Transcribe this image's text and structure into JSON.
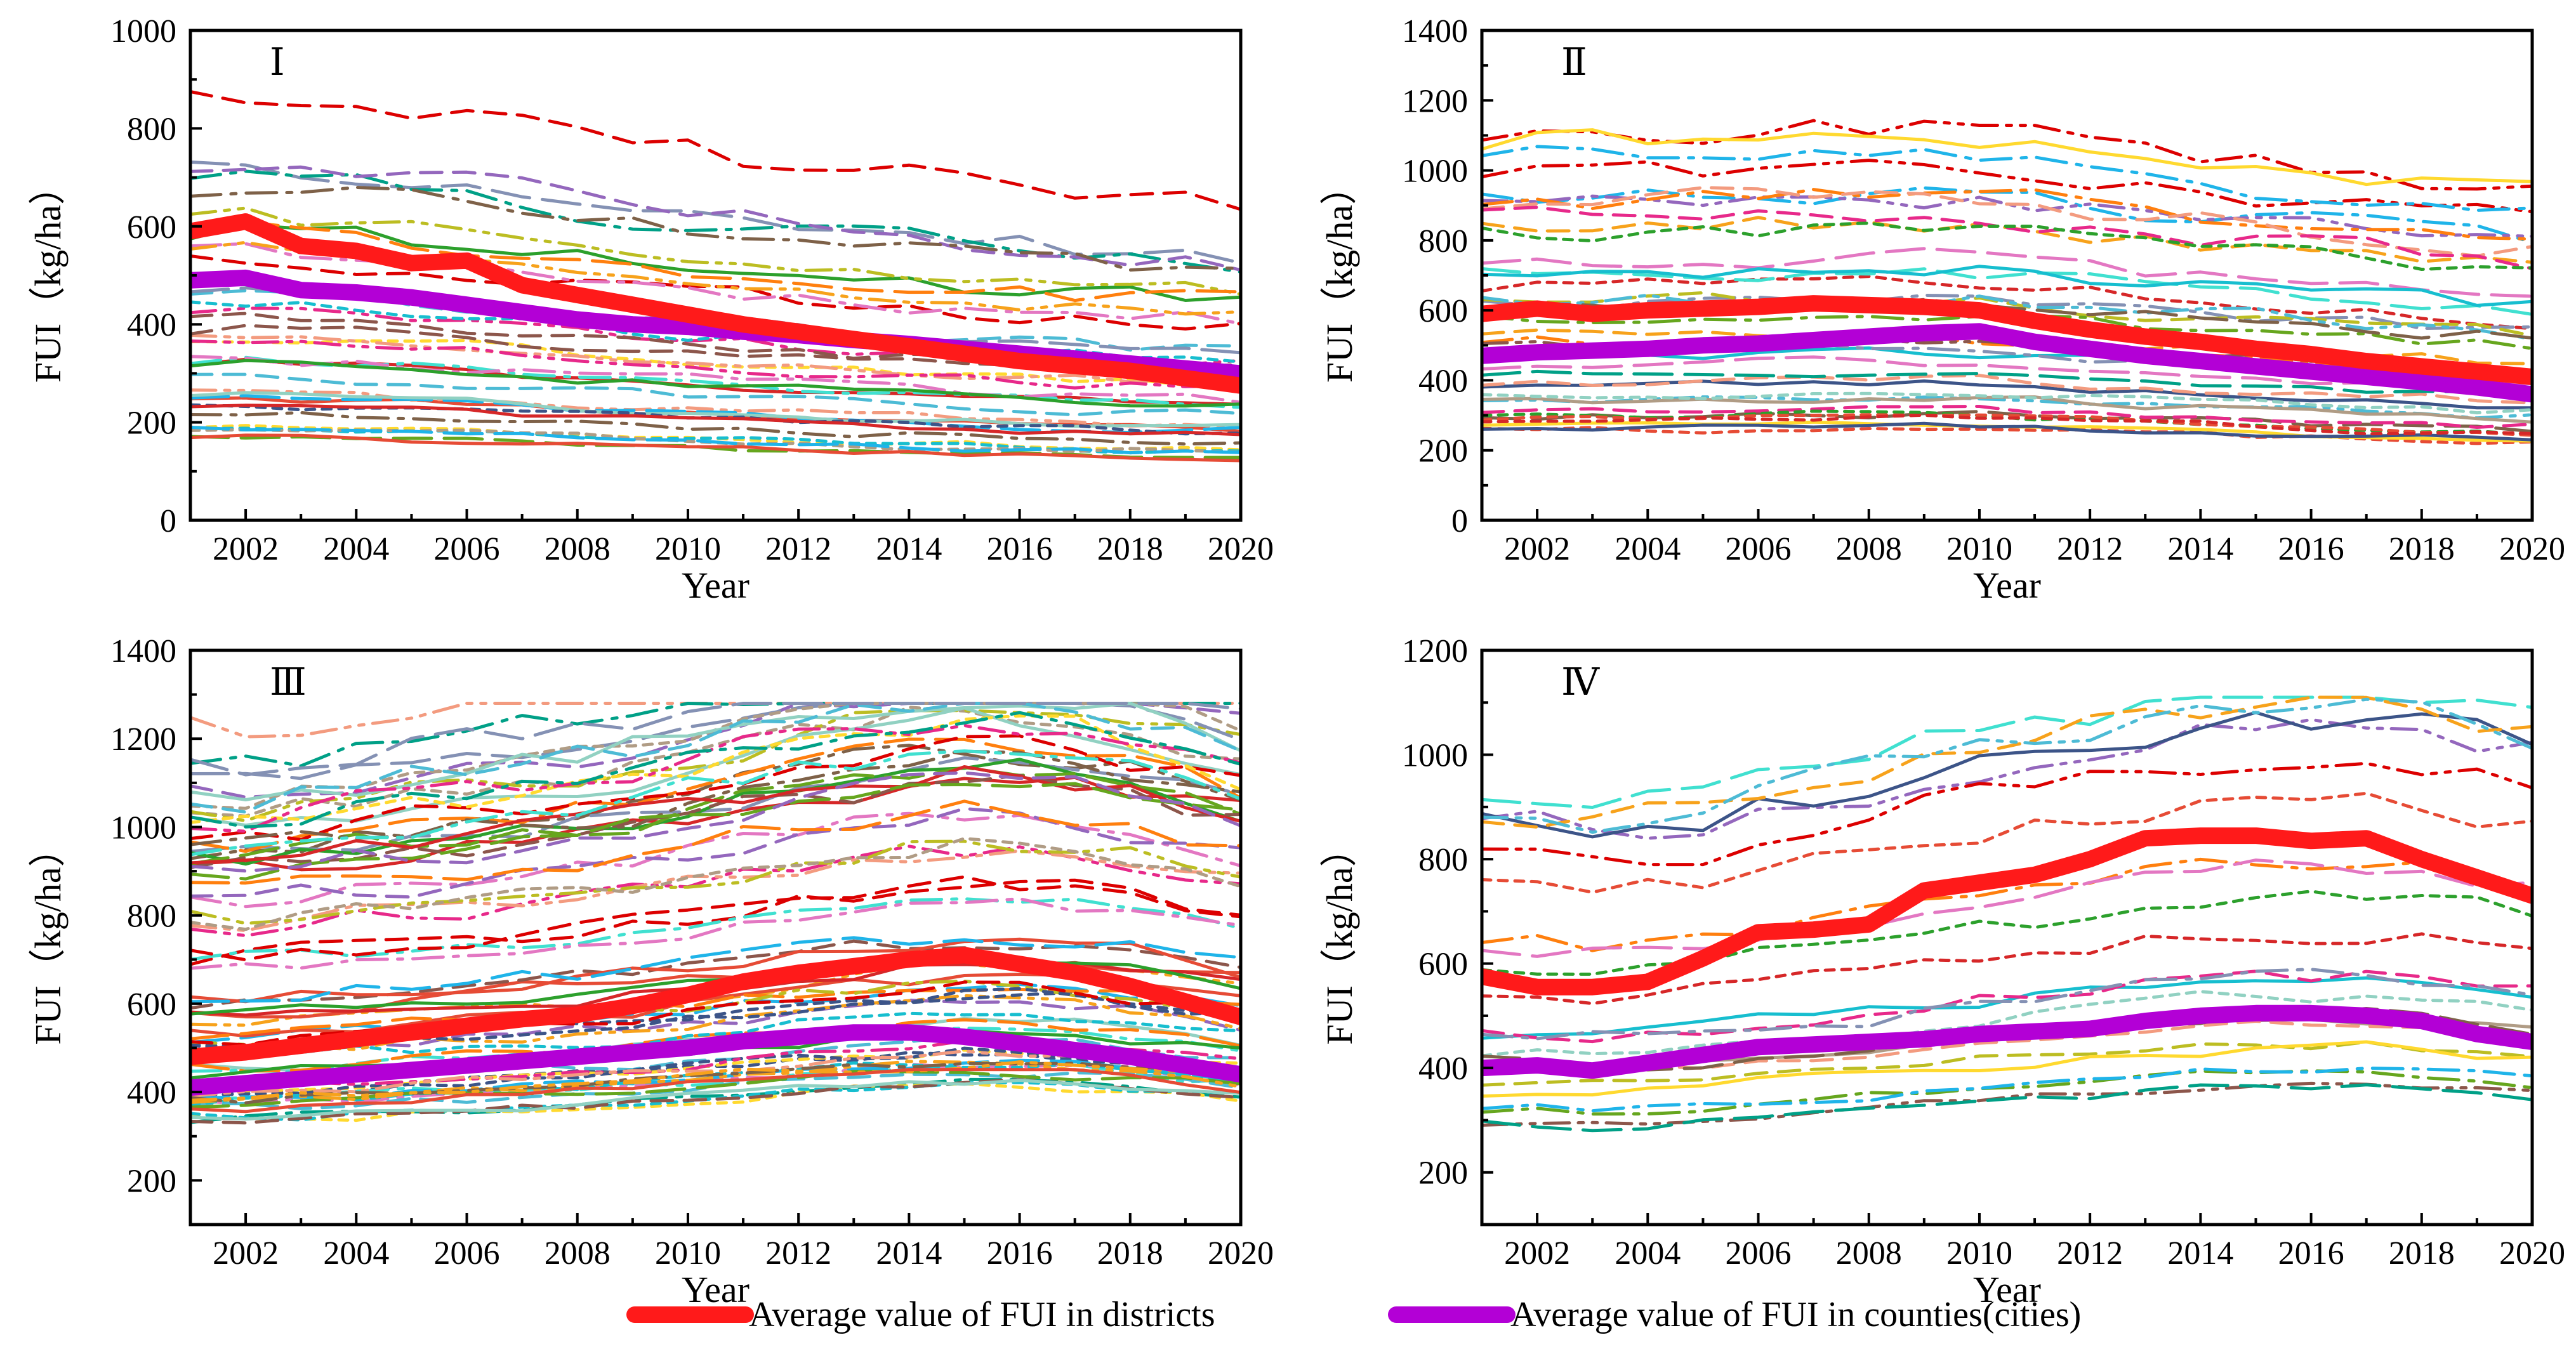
{
  "colors": {
    "district_avg": "#ff1a1a",
    "county_avg": "#b300d6",
    "palette": [
      "#e64b35",
      "#4dbbd5",
      "#00a087",
      "#3c5488",
      "#f39b7f",
      "#8491b4",
      "#91d1c2",
      "#dc0000",
      "#7e6148",
      "#b09c85",
      "#f7a21b",
      "#1fb4e9",
      "#2ca02c",
      "#9467bd",
      "#e377c2",
      "#17becf",
      "#bcbd22",
      "#ff7f0e",
      "#d62728",
      "#8c564b",
      "#40e0d0",
      "#ffd92f",
      "#e7298a",
      "#66a61e"
    ]
  },
  "legend": {
    "district_label": "Average value of FUI  in districts",
    "county_label": "Average value of FUI in counties(cities)"
  },
  "chart_data": [
    {
      "type": "line",
      "panel": "I",
      "title": "Ⅰ",
      "xlabel": "Year",
      "ylabel": "FUI（kg/ha）",
      "xlim": [
        2001,
        2020
      ],
      "ylim": [
        0,
        1000
      ],
      "xticks": [
        2002,
        2004,
        2006,
        2008,
        2010,
        2012,
        2014,
        2016,
        2018,
        2020
      ],
      "yticks": [
        0,
        200,
        400,
        600,
        800,
        1000
      ],
      "x": [
        2001,
        2002,
        2003,
        2004,
        2005,
        2006,
        2007,
        2008,
        2009,
        2010,
        2011,
        2012,
        2013,
        2014,
        2015,
        2016,
        2017,
        2018,
        2019,
        2020
      ],
      "district_avg": [
        590,
        610,
        560,
        550,
        525,
        530,
        480,
        460,
        440,
        420,
        400,
        385,
        370,
        355,
        340,
        325,
        315,
        305,
        290,
        275
      ],
      "county_avg": [
        490,
        495,
        470,
        465,
        455,
        440,
        425,
        410,
        400,
        395,
        385,
        378,
        368,
        360,
        350,
        340,
        330,
        320,
        310,
        300
      ],
      "series_count": 38,
      "series_seed": 11,
      "series_range": [
        30,
        900
      ],
      "mean_level": 420
    },
    {
      "type": "line",
      "panel": "II",
      "title": "Ⅱ",
      "xlabel": "Year",
      "ylabel": "FUI（kg/ha）",
      "xlim": [
        2001,
        2020
      ],
      "ylim": [
        0,
        1400
      ],
      "xticks": [
        2002,
        2004,
        2006,
        2008,
        2010,
        2012,
        2014,
        2016,
        2018,
        2020
      ],
      "yticks": [
        0,
        200,
        400,
        600,
        800,
        1000,
        1200,
        1400
      ],
      "x": [
        2001,
        2002,
        2003,
        2004,
        2005,
        2006,
        2007,
        2008,
        2009,
        2010,
        2011,
        2012,
        2013,
        2014,
        2015,
        2016,
        2017,
        2018,
        2019,
        2020
      ],
      "district_avg": [
        590,
        605,
        590,
        600,
        605,
        610,
        620,
        615,
        610,
        600,
        570,
        545,
        525,
        510,
        490,
        475,
        455,
        440,
        425,
        410
      ],
      "county_avg": [
        470,
        480,
        485,
        490,
        500,
        505,
        515,
        525,
        535,
        540,
        510,
        490,
        470,
        455,
        440,
        425,
        410,
        395,
        380,
        360
      ],
      "series_count": 40,
      "series_seed": 23,
      "series_range": [
        70,
        1290
      ],
      "mean_level": 450
    },
    {
      "type": "line",
      "panel": "III",
      "title": "Ⅲ",
      "xlabel": "Year",
      "ylabel": "FUI（kg/ha）",
      "xlim": [
        2001,
        2020
      ],
      "ylim": [
        100,
        1400
      ],
      "xticks": [
        2002,
        2004,
        2006,
        2008,
        2010,
        2012,
        2014,
        2016,
        2018,
        2020
      ],
      "yticks": [
        200,
        400,
        600,
        800,
        1000,
        1200,
        1400
      ],
      "x": [
        2001,
        2002,
        2003,
        2004,
        2005,
        2006,
        2007,
        2008,
        2009,
        2010,
        2011,
        2012,
        2013,
        2014,
        2015,
        2016,
        2017,
        2018,
        2019,
        2020
      ],
      "district_avg": [
        480,
        490,
        505,
        520,
        535,
        550,
        565,
        575,
        595,
        620,
        650,
        670,
        685,
        700,
        710,
        690,
        670,
        640,
        605,
        570
      ],
      "county_avg": [
        410,
        420,
        430,
        440,
        450,
        460,
        470,
        480,
        490,
        500,
        515,
        525,
        535,
        535,
        525,
        510,
        495,
        480,
        460,
        440
      ],
      "series_count": 80,
      "series_seed": 37,
      "series_range": [
        170,
        1280
      ],
      "mean_level": 480
    },
    {
      "type": "line",
      "panel": "IV",
      "title": "Ⅳ",
      "xlabel": "Year",
      "ylabel": "FUI（kg/ha）",
      "xlim": [
        2001,
        2020
      ],
      "ylim": [
        100,
        1200
      ],
      "xticks": [
        2002,
        2004,
        2006,
        2008,
        2010,
        2012,
        2014,
        2016,
        2018,
        2020
      ],
      "yticks": [
        200,
        400,
        600,
        800,
        1000,
        1200
      ],
      "x": [
        2001,
        2002,
        2003,
        2004,
        2005,
        2006,
        2007,
        2008,
        2009,
        2010,
        2011,
        2012,
        2013,
        2014,
        2015,
        2016,
        2017,
        2018,
        2019,
        2020
      ],
      "district_avg": [
        575,
        555,
        555,
        565,
        610,
        660,
        665,
        675,
        740,
        755,
        770,
        800,
        840,
        845,
        845,
        835,
        840,
        800,
        765,
        730
      ],
      "county_avg": [
        400,
        405,
        395,
        410,
        425,
        440,
        445,
        450,
        455,
        465,
        470,
        475,
        490,
        500,
        505,
        505,
        500,
        490,
        465,
        450
      ],
      "series_count": 24,
      "series_seed": 51,
      "series_range": [
        150,
        1110
      ],
      "mean_level": 430
    }
  ]
}
